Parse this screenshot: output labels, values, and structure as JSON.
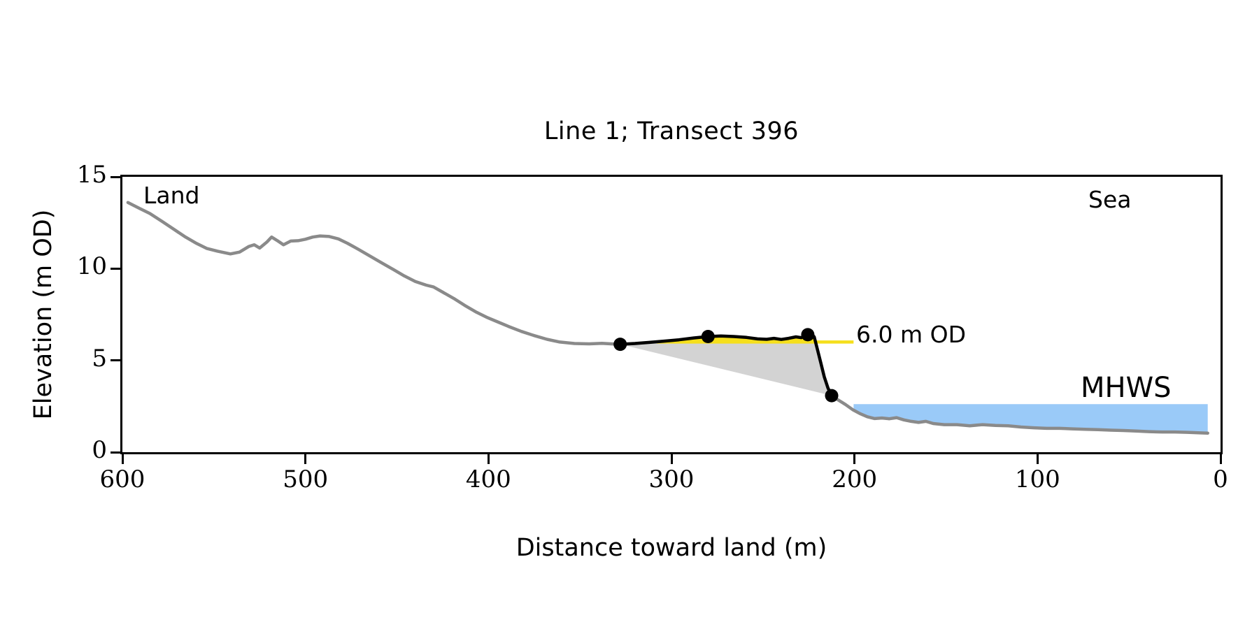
{
  "page": {
    "title": "Line 1; Transect 396"
  },
  "chart_data": {
    "type": "line",
    "title": "Line 1; Transect 396",
    "xlabel": "Distance toward land (m)",
    "ylabel": "Elevation (m OD)",
    "x_axis": {
      "min": 0,
      "max": 600,
      "reversed": true,
      "ticks": [
        600,
        500,
        400,
        300,
        200,
        100,
        0
      ]
    },
    "y_axis": {
      "min": 0,
      "max": 15,
      "ticks": [
        0,
        5,
        10,
        15
      ]
    },
    "grid": false,
    "legend": "none",
    "annotations": {
      "land": {
        "text": "Land",
        "color": "#000000"
      },
      "sea": {
        "text": "Sea",
        "color": "#000000"
      },
      "reference": {
        "text": "6.0 m OD",
        "color": "#F5DF1C"
      },
      "mhws": {
        "text": "MHWS",
        "color": "#6C9BD2"
      }
    },
    "reference_line": {
      "level": 6.0,
      "x_from": 308,
      "x_to": 200.5,
      "color": "#F5DF1C",
      "label": "6.0 m OD"
    },
    "mhws_band": {
      "level": 2.62,
      "x_from": 200.5,
      "x_to": 7,
      "fill_color": "#9ACAF8",
      "label": "MHWS"
    },
    "dune_wedge": {
      "fill_color": "#D3D3D3",
      "note": "area between dune crest profile and chord joining first and last dune marker"
    },
    "above_ref_fill_color": "#F5DF1C",
    "series": [
      {
        "name": "profile-land",
        "color": "#8A8A8A",
        "width": 4.5,
        "points": [
          [
            597,
            13.6
          ],
          [
            591,
            13.3
          ],
          [
            585,
            13.0
          ],
          [
            578,
            12.55
          ],
          [
            572,
            12.15
          ],
          [
            566,
            11.75
          ],
          [
            560,
            11.4
          ],
          [
            554,
            11.1
          ],
          [
            548,
            10.95
          ],
          [
            541,
            10.8
          ],
          [
            536,
            10.9
          ],
          [
            531,
            11.2
          ],
          [
            528,
            11.3
          ],
          [
            525,
            11.12
          ],
          [
            521,
            11.45
          ],
          [
            518.5,
            11.72
          ],
          [
            515,
            11.5
          ],
          [
            512,
            11.3
          ],
          [
            508,
            11.5
          ],
          [
            504,
            11.52
          ],
          [
            500,
            11.6
          ],
          [
            496,
            11.72
          ],
          [
            492,
            11.78
          ],
          [
            487,
            11.75
          ],
          [
            482,
            11.62
          ],
          [
            477,
            11.38
          ],
          [
            471,
            11.05
          ],
          [
            465,
            10.7
          ],
          [
            459,
            10.35
          ],
          [
            452,
            9.95
          ],
          [
            446,
            9.6
          ],
          [
            440,
            9.3
          ],
          [
            434,
            9.1
          ],
          [
            430,
            9.0
          ],
          [
            425,
            8.72
          ],
          [
            419,
            8.38
          ],
          [
            413,
            8.0
          ],
          [
            407,
            7.65
          ],
          [
            401,
            7.35
          ],
          [
            395,
            7.1
          ],
          [
            389,
            6.85
          ],
          [
            382,
            6.58
          ],
          [
            375,
            6.35
          ],
          [
            368,
            6.15
          ],
          [
            361,
            6.0
          ],
          [
            353,
            5.92
          ],
          [
            345,
            5.9
          ],
          [
            338,
            5.93
          ],
          [
            333,
            5.9
          ],
          [
            328,
            5.88
          ]
        ]
      },
      {
        "name": "profile-dune-highlight",
        "color": "#000000",
        "width": 4.5,
        "points": [
          [
            328,
            5.88
          ],
          [
            320,
            5.92
          ],
          [
            312,
            5.98
          ],
          [
            304,
            6.05
          ],
          [
            296,
            6.12
          ],
          [
            288,
            6.22
          ],
          [
            280,
            6.3
          ],
          [
            273,
            6.33
          ],
          [
            266,
            6.3
          ],
          [
            259,
            6.25
          ],
          [
            253,
            6.17
          ],
          [
            248,
            6.15
          ],
          [
            244,
            6.2
          ],
          [
            240,
            6.14
          ],
          [
            236,
            6.2
          ],
          [
            232,
            6.28
          ],
          [
            229,
            6.24
          ],
          [
            227,
            6.32
          ],
          [
            225.5,
            6.4
          ],
          [
            223.5,
            6.44
          ],
          [
            222,
            6.28
          ],
          [
            220.5,
            5.7
          ],
          [
            218.5,
            4.9
          ],
          [
            216.5,
            4.1
          ],
          [
            214.5,
            3.5
          ],
          [
            212.5,
            3.08
          ]
        ]
      },
      {
        "name": "profile-sea",
        "color": "#8A8A8A",
        "width": 4.5,
        "points": [
          [
            212.5,
            3.08
          ],
          [
            209,
            2.85
          ],
          [
            205,
            2.6
          ],
          [
            201,
            2.32
          ],
          [
            197,
            2.1
          ],
          [
            193,
            1.93
          ],
          [
            189,
            1.83
          ],
          [
            185,
            1.86
          ],
          [
            181,
            1.82
          ],
          [
            177,
            1.88
          ],
          [
            173,
            1.76
          ],
          [
            169,
            1.68
          ],
          [
            165,
            1.62
          ],
          [
            161,
            1.68
          ],
          [
            157,
            1.56
          ],
          [
            151,
            1.5
          ],
          [
            144,
            1.5
          ],
          [
            137,
            1.44
          ],
          [
            130,
            1.5
          ],
          [
            123,
            1.46
          ],
          [
            116,
            1.44
          ],
          [
            109,
            1.37
          ],
          [
            102,
            1.33
          ],
          [
            95,
            1.3
          ],
          [
            88,
            1.3
          ],
          [
            81,
            1.27
          ],
          [
            74,
            1.25
          ],
          [
            67,
            1.23
          ],
          [
            60,
            1.2
          ],
          [
            53,
            1.18
          ],
          [
            46,
            1.15
          ],
          [
            39,
            1.12
          ],
          [
            32,
            1.1
          ],
          [
            25,
            1.1
          ],
          [
            18,
            1.08
          ],
          [
            11,
            1.05
          ],
          [
            7,
            1.04
          ]
        ]
      }
    ],
    "markers": {
      "name": "dune-markers",
      "color": "#000000",
      "radius": 9.5,
      "points": [
        [
          328,
          5.88
        ],
        [
          280,
          6.3
        ],
        [
          225.5,
          6.4
        ],
        [
          212.5,
          3.08
        ]
      ]
    }
  }
}
